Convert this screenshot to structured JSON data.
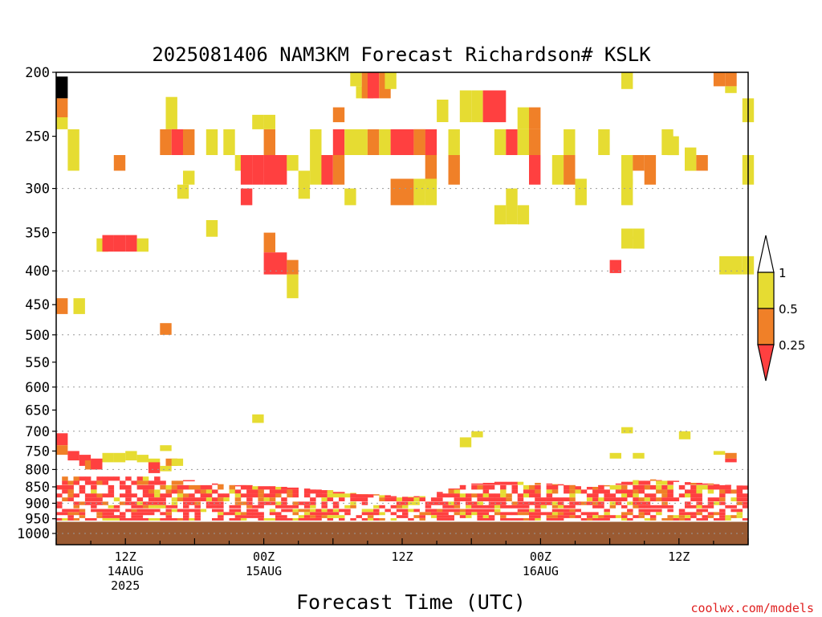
{
  "chart_data": {
    "type": "heatmap",
    "title": "2025081406 NAM3KM Forecast Richardson# KSLK",
    "xlabel": "Forecast Time (UTC)",
    "ylabel": "",
    "credit": "coolwx.com/models",
    "x_ticks": [
      {
        "hour": 6,
        "lines": [
          "12Z",
          "14AUG",
          "2025"
        ]
      },
      {
        "hour": 18,
        "lines": [
          "00Z",
          "15AUG"
        ]
      },
      {
        "hour": 30,
        "lines": [
          "12Z"
        ]
      },
      {
        "hour": 42,
        "lines": [
          "00Z",
          "16AUG"
        ]
      },
      {
        "hour": 54,
        "lines": [
          "12Z"
        ]
      }
    ],
    "xlim": [
      0,
      60
    ],
    "y_scale": "log-pressure",
    "ylim_hpa": [
      1040,
      200
    ],
    "y_ticks": [
      200,
      250,
      300,
      350,
      400,
      450,
      500,
      550,
      600,
      650,
      700,
      750,
      800,
      850,
      900,
      950,
      1000
    ],
    "grid_levels": [
      300,
      400,
      500,
      600,
      700,
      800,
      900,
      1000
    ],
    "surface_pressure_hpa": 960,
    "colors": {
      "lt_0.25": "#ff4040",
      "0.25_0.5": "#f08028",
      "0.5_1": "#e6dc32",
      "surface": "#9a5a32",
      "credit": "#e02020"
    },
    "legend": {
      "position": "right",
      "labels": [
        "1",
        "0.5",
        "0.25"
      ]
    },
    "cells": [
      [
        0.0,
        203,
        219,
        "c"
      ],
      [
        0.0,
        219,
        234,
        "o"
      ],
      [
        0.0,
        234,
        244,
        "y"
      ],
      [
        1.0,
        244,
        267,
        "y"
      ],
      [
        1.0,
        267,
        282,
        "y"
      ],
      [
        5.0,
        267,
        282,
        "o"
      ],
      [
        3.5,
        357,
        374,
        "y"
      ],
      [
        4.0,
        353,
        374,
        "r"
      ],
      [
        5.0,
        353,
        374,
        "r"
      ],
      [
        6.0,
        353,
        374,
        "r"
      ],
      [
        7.0,
        357,
        374,
        "y"
      ],
      [
        9.5,
        218,
        244,
        "y"
      ],
      [
        9.0,
        244,
        267,
        "o"
      ],
      [
        10.0,
        244,
        267,
        "r"
      ],
      [
        11.0,
        244,
        267,
        "o"
      ],
      [
        11.0,
        282,
        296,
        "y"
      ],
      [
        10.5,
        296,
        311,
        "y"
      ],
      [
        13.0,
        244,
        267,
        "y"
      ],
      [
        13.0,
        335,
        355,
        "y"
      ],
      [
        14.5,
        244,
        267,
        "y"
      ],
      [
        15.5,
        267,
        282,
        "y"
      ],
      [
        16.0,
        267,
        296,
        "r"
      ],
      [
        17.0,
        267,
        296,
        "r"
      ],
      [
        18.0,
        267,
        296,
        "r"
      ],
      [
        19.0,
        267,
        296,
        "r"
      ],
      [
        16.0,
        300,
        318,
        "r"
      ],
      [
        17.0,
        232,
        244,
        "y"
      ],
      [
        18.0,
        244,
        267,
        "o"
      ],
      [
        18.0,
        232,
        244,
        "y"
      ],
      [
        18.0,
        350,
        375,
        "o"
      ],
      [
        18.0,
        375,
        405,
        "r"
      ],
      [
        19.0,
        375,
        405,
        "r"
      ],
      [
        20.0,
        385,
        405,
        "o"
      ],
      [
        20.0,
        405,
        440,
        "y"
      ],
      [
        20.0,
        267,
        282,
        "y"
      ],
      [
        21.0,
        282,
        311,
        "y"
      ],
      [
        22.0,
        244,
        267,
        "y"
      ],
      [
        22.0,
        267,
        296,
        "y"
      ],
      [
        23.0,
        267,
        296,
        "r"
      ],
      [
        24.0,
        244,
        267,
        "r"
      ],
      [
        24.0,
        226,
        238,
        "o"
      ],
      [
        24.0,
        267,
        296,
        "o"
      ],
      [
        25.0,
        300,
        318,
        "y"
      ],
      [
        25.5,
        200,
        210,
        "y"
      ],
      [
        26.0,
        210,
        219,
        "y"
      ],
      [
        26.5,
        200,
        219,
        "o"
      ],
      [
        27.0,
        200,
        219,
        "r"
      ],
      [
        28.0,
        200,
        219,
        "o"
      ],
      [
        28.5,
        200,
        212,
        "y"
      ],
      [
        25.0,
        244,
        267,
        "y"
      ],
      [
        26.0,
        244,
        267,
        "y"
      ],
      [
        27.0,
        244,
        267,
        "o"
      ],
      [
        28.0,
        244,
        267,
        "y"
      ],
      [
        29.0,
        244,
        267,
        "r"
      ],
      [
        30.0,
        244,
        267,
        "r"
      ],
      [
        31.0,
        244,
        267,
        "r"
      ],
      [
        32.0,
        244,
        267,
        "r"
      ],
      [
        31.0,
        244,
        267,
        "o"
      ],
      [
        32.0,
        267,
        296,
        "o"
      ],
      [
        29.0,
        290,
        318,
        "o"
      ],
      [
        30.0,
        290,
        318,
        "o"
      ],
      [
        31.0,
        290,
        318,
        "y"
      ],
      [
        32.0,
        290,
        318,
        "y"
      ],
      [
        33.0,
        220,
        238,
        "y"
      ],
      [
        34.0,
        244,
        267,
        "y"
      ],
      [
        34.0,
        267,
        296,
        "o"
      ],
      [
        35.0,
        213,
        238,
        "y"
      ],
      [
        36.0,
        213,
        238,
        "y"
      ],
      [
        37.0,
        213,
        238,
        "r"
      ],
      [
        38.0,
        213,
        238,
        "r"
      ],
      [
        38.0,
        244,
        267,
        "y"
      ],
      [
        39.0,
        244,
        267,
        "r"
      ],
      [
        40.0,
        226,
        244,
        "y"
      ],
      [
        40.0,
        244,
        267,
        "y"
      ],
      [
        41.0,
        226,
        244,
        "o"
      ],
      [
        41.0,
        244,
        267,
        "o"
      ],
      [
        38.0,
        318,
        340,
        "y"
      ],
      [
        39.0,
        300,
        340,
        "y"
      ],
      [
        40.0,
        318,
        340,
        "y"
      ],
      [
        41.0,
        267,
        296,
        "r"
      ],
      [
        43.0,
        267,
        296,
        "y"
      ],
      [
        44.0,
        267,
        296,
        "o"
      ],
      [
        44.0,
        244,
        267,
        "y"
      ],
      [
        45.0,
        290,
        318,
        "y"
      ],
      [
        47.0,
        244,
        267,
        "y"
      ],
      [
        49.0,
        200,
        212,
        "y"
      ],
      [
        49.0,
        267,
        296,
        "y"
      ],
      [
        50.0,
        267,
        282,
        "o"
      ],
      [
        51.0,
        267,
        296,
        "o"
      ],
      [
        49.0,
        290,
        318,
        "y"
      ],
      [
        49.0,
        345,
        358,
        "y"
      ],
      [
        50.0,
        345,
        370,
        "y"
      ],
      [
        49.0,
        355,
        370,
        "y"
      ],
      [
        48.0,
        385,
        403,
        "r"
      ],
      [
        52.5,
        244,
        267,
        "y"
      ],
      [
        53.0,
        250,
        267,
        "y"
      ],
      [
        54.5,
        260,
        282,
        "y"
      ],
      [
        55.5,
        267,
        282,
        "o"
      ],
      [
        57.0,
        200,
        210,
        "o"
      ],
      [
        58.0,
        200,
        210,
        "o"
      ],
      [
        58.0,
        210,
        215,
        "y"
      ],
      [
        59.5,
        219,
        238,
        "y"
      ],
      [
        59.5,
        267,
        296,
        "y"
      ],
      [
        57.5,
        380,
        405,
        "y"
      ],
      [
        58.5,
        380,
        405,
        "y"
      ],
      [
        59.5,
        380,
        405,
        "y"
      ],
      [
        0.0,
        440,
        465,
        "o"
      ],
      [
        1.5,
        440,
        465,
        "y"
      ],
      [
        9.0,
        480,
        500,
        "o"
      ],
      [
        17.0,
        660,
        680,
        "y"
      ],
      [
        35.0,
        715,
        740,
        "y"
      ],
      [
        36.0,
        700,
        715,
        "y"
      ],
      [
        49.0,
        690,
        705,
        "y"
      ],
      [
        54.0,
        700,
        720,
        "y"
      ],
      [
        0.0,
        705,
        735,
        "r"
      ],
      [
        0.0,
        735,
        760,
        "o"
      ],
      [
        1.0,
        750,
        775,
        "r"
      ],
      [
        2.0,
        760,
        790,
        "r"
      ],
      [
        2.5,
        775,
        800,
        "o"
      ],
      [
        3.0,
        770,
        800,
        "r"
      ],
      [
        4.0,
        755,
        780,
        "y"
      ],
      [
        5.0,
        755,
        780,
        "y"
      ],
      [
        6.0,
        750,
        775,
        "y"
      ],
      [
        7.0,
        760,
        780,
        "y"
      ],
      [
        8.0,
        770,
        795,
        "y"
      ],
      [
        8.0,
        780,
        810,
        "r"
      ],
      [
        9.0,
        790,
        805,
        "y"
      ],
      [
        9.5,
        770,
        790,
        "o"
      ],
      [
        10.0,
        770,
        790,
        "y"
      ],
      [
        9.0,
        735,
        750,
        "y"
      ],
      [
        48.0,
        755,
        770,
        "y"
      ],
      [
        50.0,
        755,
        770,
        "y"
      ],
      [
        58.0,
        755,
        770,
        "o"
      ],
      [
        58.0,
        770,
        780,
        "r"
      ],
      [
        57.0,
        750,
        760,
        "y"
      ]
    ],
    "cell_width_hours": 1.0,
    "pbl_bands": [
      [
        820,
        834
      ],
      [
        832,
        846
      ],
      [
        845,
        860
      ],
      [
        858,
        872
      ],
      [
        870,
        884
      ],
      [
        882,
        896
      ],
      [
        895,
        908
      ],
      [
        906,
        918
      ],
      [
        918,
        930
      ],
      [
        928,
        940
      ],
      [
        938,
        950
      ],
      [
        948,
        958
      ]
    ],
    "pbl_top_by_hour": [
      780,
      780,
      790,
      800,
      800,
      805,
      810,
      820,
      820,
      820,
      825,
      830,
      835,
      840,
      842,
      845,
      845,
      848,
      848,
      850,
      852,
      855,
      858,
      860,
      865,
      868,
      872,
      872,
      875,
      878,
      880,
      878,
      875,
      865,
      855,
      845,
      840,
      838,
      835,
      835,
      835,
      838,
      840,
      842,
      845,
      848,
      850,
      845,
      840,
      835,
      830,
      828,
      830,
      832,
      836,
      838,
      840,
      842,
      844,
      846
    ],
    "pbl_band_colors_seed": 20250814
  }
}
